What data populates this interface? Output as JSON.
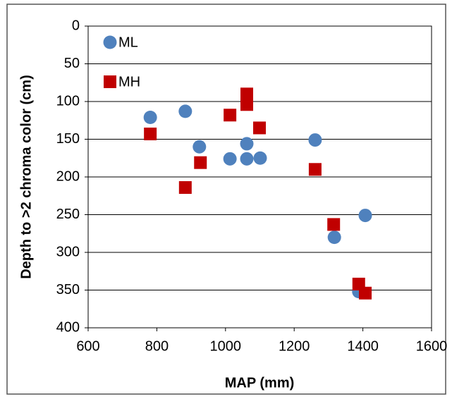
{
  "chart_data": {
    "type": "scatter",
    "xlabel": "MAP (mm)",
    "ylabel": "Depth to >2 chroma color  (cm)",
    "xlim": [
      600,
      1600
    ],
    "xticks": [
      600,
      800,
      1000,
      1200,
      1400,
      1600
    ],
    "ylim": [
      0,
      400
    ],
    "yticks": [
      0,
      50,
      100,
      150,
      200,
      250,
      300,
      350,
      400
    ],
    "y_inverted": true,
    "grid": "y",
    "legend": "upper left",
    "series": [
      {
        "name": "ML",
        "color": "#4f81bd",
        "marker": "circle",
        "x": [
          781,
          883,
          924,
          1013,
          1062,
          1062,
          1101,
          1261,
          1317,
          1388,
          1407
        ],
        "values": [
          121,
          113,
          160,
          176,
          156,
          176,
          175,
          151,
          280,
          352,
          251
        ]
      },
      {
        "name": "MH",
        "color": "#c00000",
        "marker": "square",
        "x": [
          781,
          883,
          927,
          1013,
          1062,
          1062,
          1099,
          1261,
          1315,
          1388,
          1407
        ],
        "values": [
          143,
          214,
          181,
          118,
          90,
          104,
          135,
          190,
          263,
          342,
          354
        ]
      }
    ]
  }
}
